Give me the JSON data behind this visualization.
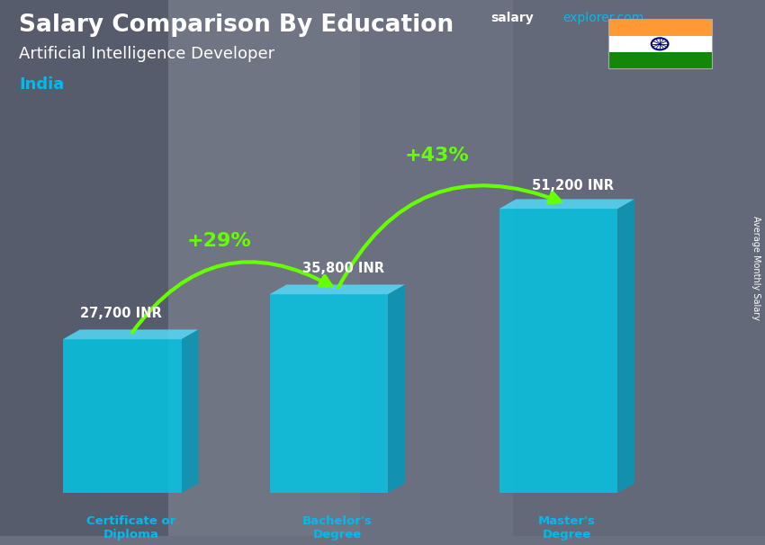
{
  "title_bold": "Salary Comparison By Education",
  "subtitle": "Artificial Intelligence Developer",
  "country": "India",
  "categories": [
    "Certificate or\nDiploma",
    "Bachelor's\nDegree",
    "Master's\nDegree"
  ],
  "values": [
    27700,
    35800,
    51200
  ],
  "value_labels": [
    "27,700 INR",
    "35,800 INR",
    "51,200 INR"
  ],
  "pct_labels": [
    "+29%",
    "+43%"
  ],
  "bar_front_color": "#00c8e8",
  "bar_top_color": "#55ddff",
  "bar_side_color": "#0099bb",
  "bar_alpha": 0.82,
  "title_color": "#ffffff",
  "subtitle_color": "#ffffff",
  "country_color": "#00bbee",
  "value_color": "#ffffff",
  "pct_color": "#66ff00",
  "arrow_color": "#66ff00",
  "cat_color": "#00bbee",
  "bg_color": "#6a7080",
  "brand_salary_color": "#ffffff",
  "brand_explorer_color": "#00bbee",
  "ylabel": "Average Monthly Salary",
  "ylabel_color": "#ffffff",
  "flag_orange": "#FF9933",
  "flag_white": "#FFFFFF",
  "flag_green": "#138808",
  "flag_chakra": "#000080"
}
